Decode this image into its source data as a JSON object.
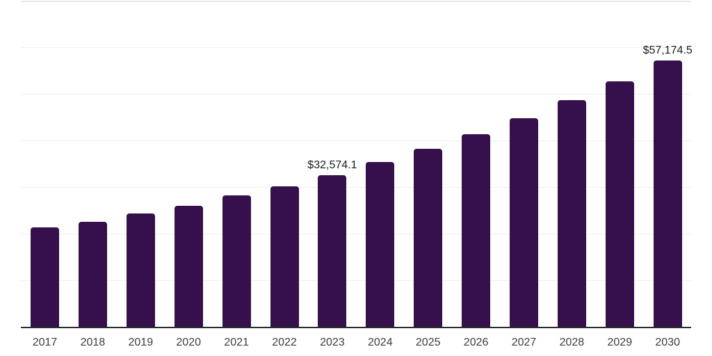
{
  "page": {
    "background": "#ffffff"
  },
  "style": {
    "bar_color": "#36104d",
    "axis_line_color": "#2b2b2b",
    "gridline_color": "#f0f0f0",
    "top_gridline_color": "#e7e7e7",
    "value_label_color": "#1a1a1a",
    "tick_label_color": "#3c3c3c",
    "background": "#ffffff"
  },
  "chart_data": {
    "type": "bar",
    "title": "",
    "xlabel": "",
    "ylabel": "",
    "categories": [
      "2017",
      "2018",
      "2019",
      "2020",
      "2021",
      "2022",
      "2023",
      "2024",
      "2025",
      "2026",
      "2027",
      "2028",
      "2029",
      "2030"
    ],
    "values": [
      21300,
      22600,
      24400,
      26000,
      28250,
      30200,
      32574.1,
      35400,
      38300,
      41400,
      44800,
      48700,
      52700,
      57174.5
    ],
    "data_labels": [
      "",
      "",
      "",
      "",
      "",
      "",
      "$32,574.1",
      "",
      "",
      "",
      "",
      "",
      "",
      "$57,174.5"
    ],
    "ylim": [
      0,
      70000
    ],
    "gridline_step": 10000,
    "grid": "horizontal-only",
    "legend": "none",
    "y_axis_labels_visible": false
  }
}
